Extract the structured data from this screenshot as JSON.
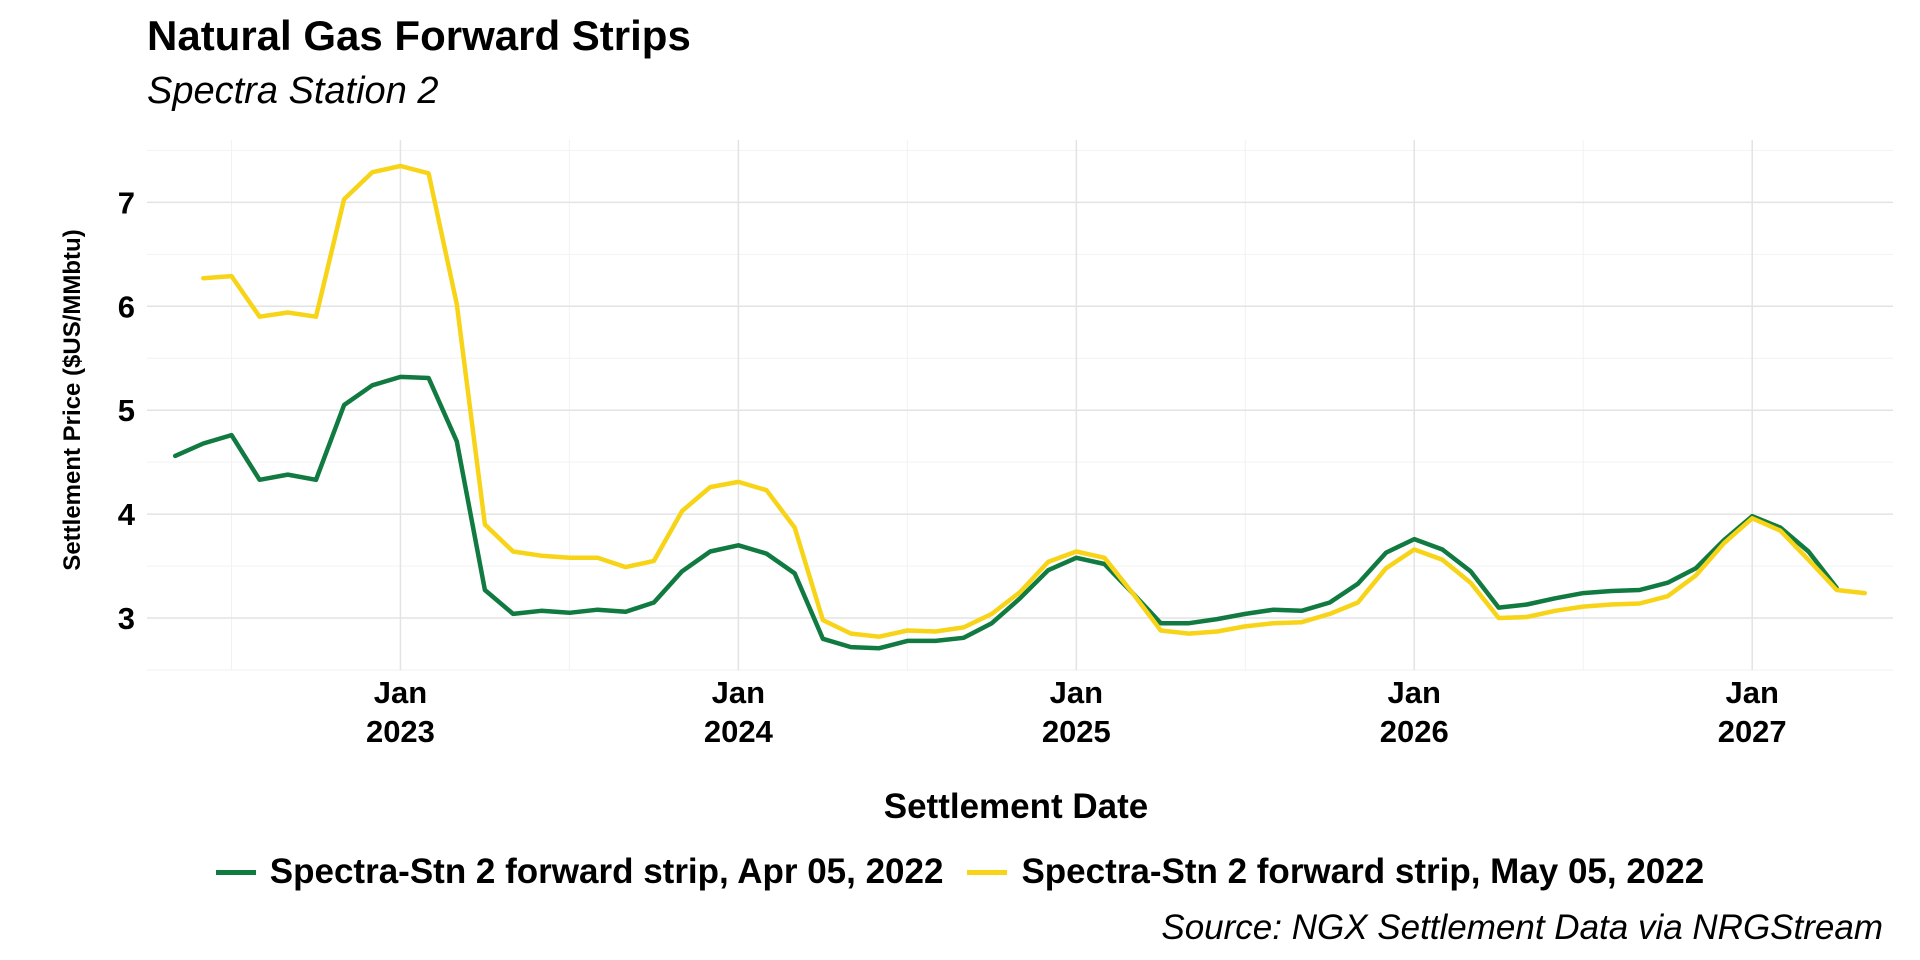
{
  "chart_data": {
    "type": "line",
    "title": "Natural Gas Forward Strips",
    "subtitle": "Spectra Station 2",
    "xlabel": "Settlement Date",
    "ylabel": "Settlement Price ($US/MMbtu)",
    "caption": "Source: NGX Settlement Data via NRGStream",
    "ylim": [
      2.5,
      7.6
    ],
    "xlim": [
      "2022-04-01",
      "2027-06-01"
    ],
    "grid": true,
    "legend_position": "bottom",
    "y_ticks": [
      "3",
      "4",
      "5",
      "6",
      "7"
    ],
    "x_ticks": [
      {
        "month": "Jan",
        "year": "2023"
      },
      {
        "month": "Jan",
        "year": "2024"
      },
      {
        "month": "Jan",
        "year": "2025"
      },
      {
        "month": "Jan",
        "year": "2026"
      },
      {
        "month": "Jan",
        "year": "2027"
      }
    ],
    "series": [
      {
        "name": "Spectra-Stn 2 forward strip, Apr 05, 2022",
        "color": "#117a41",
        "start": "2022-05",
        "values": [
          4.56,
          4.68,
          4.76,
          4.33,
          4.38,
          4.33,
          5.05,
          5.24,
          5.32,
          5.31,
          4.7,
          3.27,
          3.04,
          3.07,
          3.05,
          3.08,
          3.06,
          3.15,
          3.45,
          3.64,
          3.7,
          3.62,
          3.43,
          2.8,
          2.72,
          2.71,
          2.78,
          2.78,
          2.81,
          2.95,
          3.19,
          3.46,
          3.58,
          3.52,
          3.24,
          2.95,
          2.95,
          2.99,
          3.04,
          3.08,
          3.07,
          3.15,
          3.33,
          3.63,
          3.76,
          3.66,
          3.45,
          3.1,
          3.13,
          3.19,
          3.24,
          3.26,
          3.27,
          3.34,
          3.48,
          3.75,
          3.98,
          3.87,
          3.64,
          3.29
        ]
      },
      {
        "name": "Spectra-Stn 2 forward strip, May 05, 2022",
        "color": "#f7d417",
        "start": "2022-06",
        "values": [
          6.27,
          6.29,
          5.9,
          5.94,
          5.9,
          7.03,
          7.29,
          7.35,
          7.28,
          6.02,
          3.9,
          3.64,
          3.6,
          3.58,
          3.58,
          3.49,
          3.55,
          4.03,
          4.26,
          4.31,
          4.23,
          3.87,
          2.98,
          2.85,
          2.82,
          2.88,
          2.87,
          2.91,
          3.04,
          3.25,
          3.54,
          3.64,
          3.58,
          3.24,
          2.88,
          2.85,
          2.87,
          2.92,
          2.95,
          2.96,
          3.04,
          3.15,
          3.48,
          3.66,
          3.56,
          3.34,
          3.0,
          3.01,
          3.07,
          3.11,
          3.13,
          3.14,
          3.21,
          3.41,
          3.72,
          3.96,
          3.84,
          3.56,
          3.27,
          3.24
        ]
      }
    ]
  }
}
